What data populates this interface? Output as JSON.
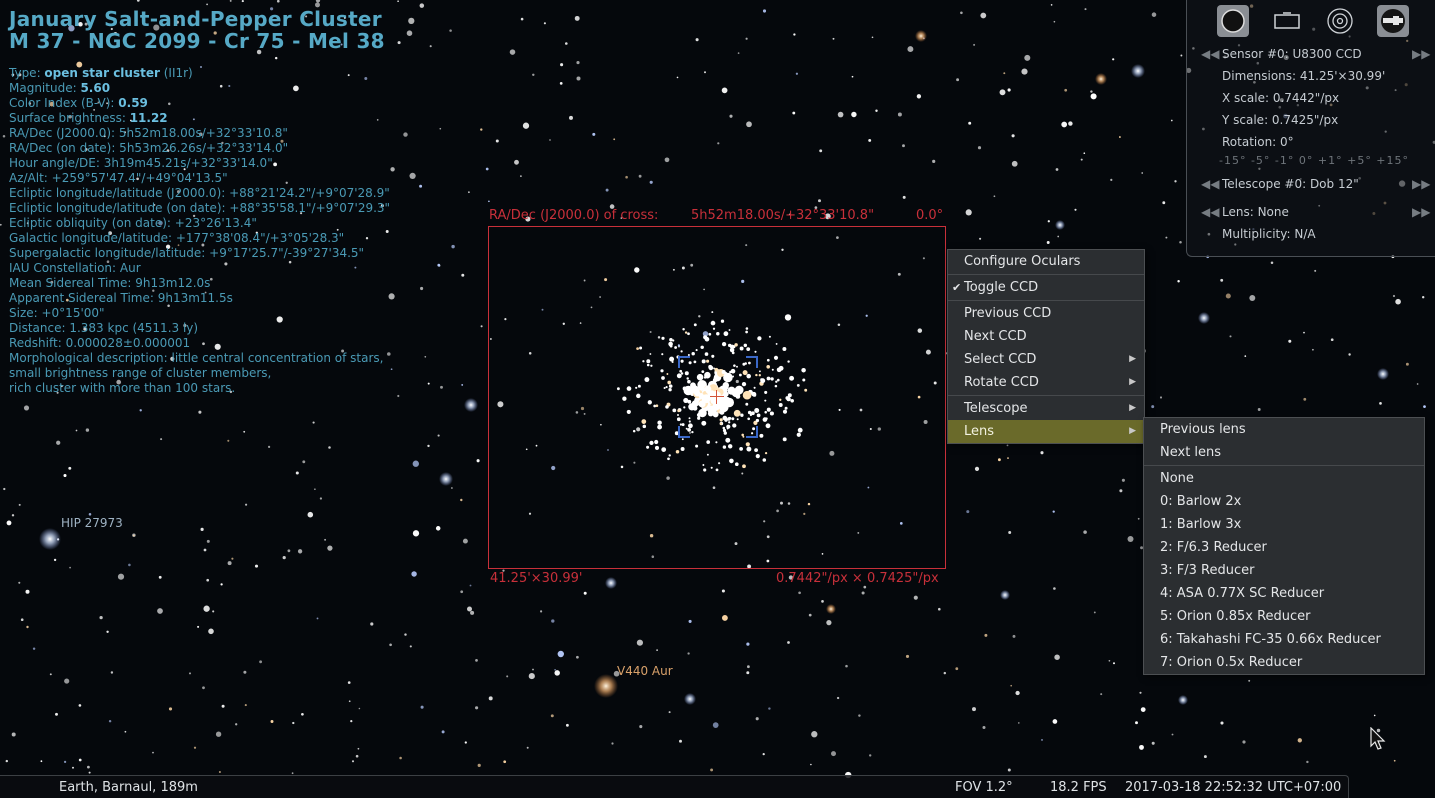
{
  "object": {
    "name": "January Salt-and-Pepper Cluster",
    "designations": "M 37 - NGC 2099 - Cr 75 - Mel 38",
    "type_label": "Type: ",
    "type_value": "open star cluster",
    "type_class": " (II1r)",
    "magnitude_label": "Magnitude: ",
    "magnitude_value": "5.60",
    "color_index_label": "Color Index (B-V): ",
    "color_index_value": "0.59",
    "surface_brightness_label": "Surface brightness: ",
    "surface_brightness_value": "11.22",
    "ra_dec_j2000": "RA/Dec (J2000.0): 5h52m18.00s/+32°33'10.8\"",
    "ra_dec_on_date": "RA/Dec (on date): 5h53m26.26s/+32°33'14.0\"",
    "hour_angle": "Hour angle/DE: 3h19m45.21s/+32°33'14.0\"",
    "az_alt": "Az/Alt: +259°57'47.4\"/+49°04'13.5\"",
    "ecliptic_j2000": "Ecliptic longitude/latitude (J2000.0): +88°21'24.2\"/+9°07'28.9\"",
    "ecliptic_on_date": "Ecliptic longitude/latitude (on date): +88°35'58.1\"/+9°07'29.3\"",
    "ecliptic_obliquity": "Ecliptic obliquity (on date): +23°26'13.4\"",
    "galactic": "Galactic longitude/latitude: +177°38'08.4\"/+3°05'28.3\"",
    "supergalactic": "Supergalactic longitude/latitude: +9°17'25.7\"/-39°27'34.5\"",
    "constellation": "IAU Constellation: Aur",
    "mean_sidereal": "Mean Sidereal Time: 9h13m12.0s",
    "apparent_sidereal": "Apparent Sidereal Time: 9h13m11.5s",
    "size": "Size: +0°15'00\"",
    "distance": "Distance: 1.383 kpc (4511.3 ly)",
    "redshift": "Redshift: 0.000028±0.000001",
    "morph_1": "Morphological description: little central concentration of stars,",
    "morph_2": "small brightness range of cluster members,",
    "morph_3": "rich cluster with more than 100 stars."
  },
  "star_labels": {
    "hip": "HIP 27973",
    "v440": "V440 Aur"
  },
  "ccd": {
    "radec_label": "RA/Dec (J2000.0) of cross:",
    "radec_value": "5h52m18.00s/+32°33'10.8\"",
    "rotation": "0.0°",
    "dimensions": "41.25'×30.99'",
    "scale": "0.7442\"/px × 0.7425\"/px"
  },
  "ocular_panel": {
    "sensor": "Sensor #0: U8300 CCD",
    "dimensions": "Dimensions: 41.25'×30.99'",
    "x_scale": "X scale: 0.7442\"/px",
    "y_scale": "Y scale: 0.7425\"/px",
    "rotation": "Rotation: 0°",
    "rotation_scale": "-15° -5° -1° 0° +1° +5° +15°",
    "telescope": "Telescope #0: Dob 12\"",
    "lens": "Lens: None",
    "multiplicity": "Multiplicity: N/A"
  },
  "main_menu": {
    "configure": "Configure Oculars",
    "toggle_ccd": "Toggle CCD",
    "previous_ccd": "Previous CCD",
    "next_ccd": "Next CCD",
    "select_ccd": "Select CCD",
    "rotate_ccd": "Rotate CCD",
    "telescope": "Telescope",
    "lens": "Lens"
  },
  "lens_menu": {
    "previous": "Previous lens",
    "next": "Next lens",
    "none": "None",
    "items": [
      "0: Barlow 2x",
      "1: Barlow 3x",
      "2: F/6.3 Reducer",
      "3: F/3 Reducer",
      "4: ASA 0.77X SC Reducer",
      "5: Orion 0.85x Reducer",
      "6: Takahashi FC-35 0.66x Reducer",
      "7: Orion 0.5x Reducer"
    ]
  },
  "status_bar": {
    "location": "Earth, Barnaul, 189m",
    "fov": "FOV 1.2°",
    "fps": "18.2 FPS",
    "datetime": "2017-03-18 22:52:32 UTC+07:00"
  },
  "colors": {
    "info_text": "#4a9ab5",
    "ccd_frame": "#c8303a",
    "menu_highlight": "#6a6a2a",
    "star_label_hip": "#9fb3c4",
    "star_label_v440": "#d9a16a"
  }
}
